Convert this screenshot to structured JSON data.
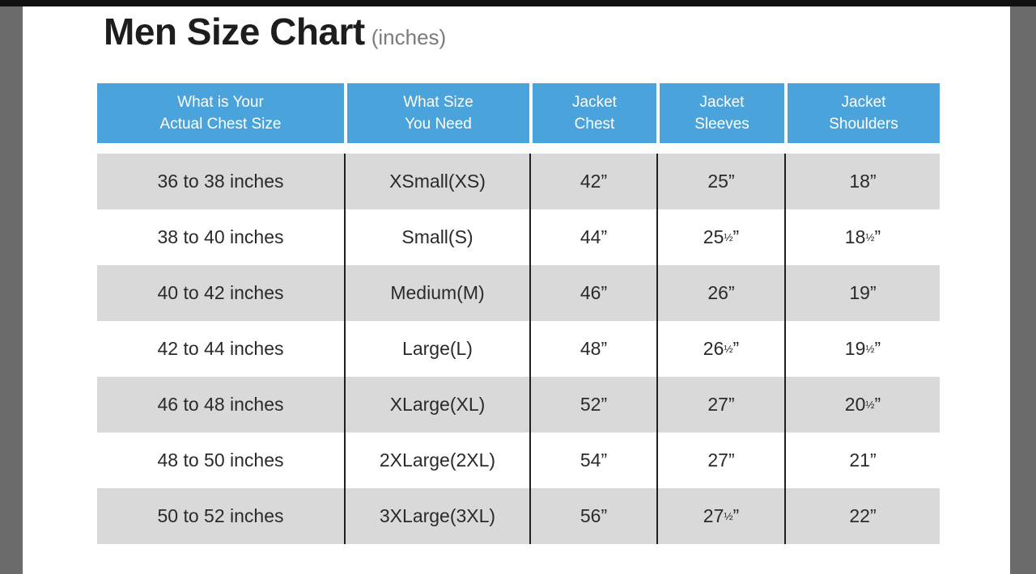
{
  "title": {
    "text": "Men Size Chart",
    "subtitle": "(inches)"
  },
  "chart_data": {
    "type": "table",
    "title": "Men Size Chart (inches)",
    "units": "inches",
    "columns": [
      "What is Your Actual Chest Size",
      "What Size You Need",
      "Jacket Chest",
      "Jacket Sleeves",
      "Jacket Shoulders"
    ],
    "columns_two_line": [
      [
        "What is Your",
        "Actual Chest Size"
      ],
      [
        "What Size",
        "You Need"
      ],
      [
        "Jacket",
        "Chest"
      ],
      [
        "Jacket",
        "Sleeves"
      ],
      [
        "Jacket",
        "Shoulders"
      ]
    ],
    "rows": [
      [
        "36 to 38 inches",
        "XSmall(XS)",
        "42”",
        "25”",
        "18”"
      ],
      [
        "38 to 40 inches",
        "Small(S)",
        "44”",
        "25½”",
        "18½”"
      ],
      [
        "40 to 42 inches",
        "Medium(M)",
        "46”",
        "26”",
        "19”"
      ],
      [
        "42 to 44 inches",
        "Large(L)",
        "48”",
        "26½”",
        "19½”"
      ],
      [
        "46 to 48 inches",
        "XLarge(XL)",
        "52”",
        "27”",
        "20½”"
      ],
      [
        "48 to 50 inches",
        "2XLarge(2XL)",
        "54”",
        "27”",
        "21”"
      ],
      [
        "50 to 52 inches",
        "3XLarge(3XL)",
        "56”",
        "27½”",
        "22”"
      ]
    ],
    "layout": {
      "header_bg": "#4aa3da",
      "header_text": "#ffffff",
      "alt_row_bg": "#d9d9d9",
      "row_bg": "#ffffff",
      "grid_line_color": "#1f1f1f",
      "alternating_start": "gray"
    }
  }
}
